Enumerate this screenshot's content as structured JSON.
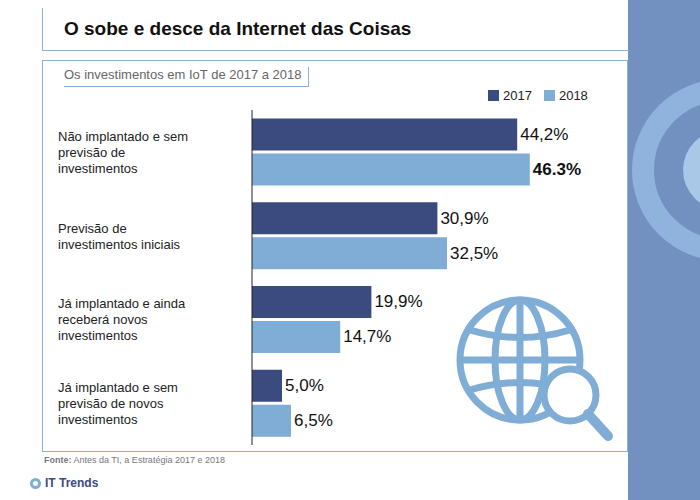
{
  "chart_data": {
    "type": "bar",
    "orientation": "horizontal",
    "title": "O sobe e desce da Internet das Coisas",
    "subtitle": "Os investimentos em IoT de 2017 a 2018",
    "categories": [
      "Não implantado e sem previsão de investimentos",
      "Previsão de investimentos iniciais",
      "Já implantado e ainda receberá novos investimentos",
      "Já implantado e sem previsão de novos investimentos"
    ],
    "series": [
      {
        "name": "2017",
        "color": "#3b4a7f",
        "values": [
          44.2,
          30.9,
          19.9,
          5.0
        ],
        "value_labels": [
          "44,2%",
          "30,9%",
          "19,9%",
          "5,0%"
        ]
      },
      {
        "name": "2018",
        "color": "#7fadd6",
        "values": [
          46.3,
          32.5,
          14.7,
          6.5
        ],
        "value_labels": [
          "46.3%",
          "32,5%",
          "14,7%",
          "6,5%"
        ]
      }
    ],
    "xlim": [
      0,
      60
    ],
    "tick_labels": "y",
    "data_labels": true,
    "legend": "upper right",
    "source": "Fonte: Antes da TI, a Estratégia 2017 e 2018",
    "footer": "IT Trends"
  }
}
